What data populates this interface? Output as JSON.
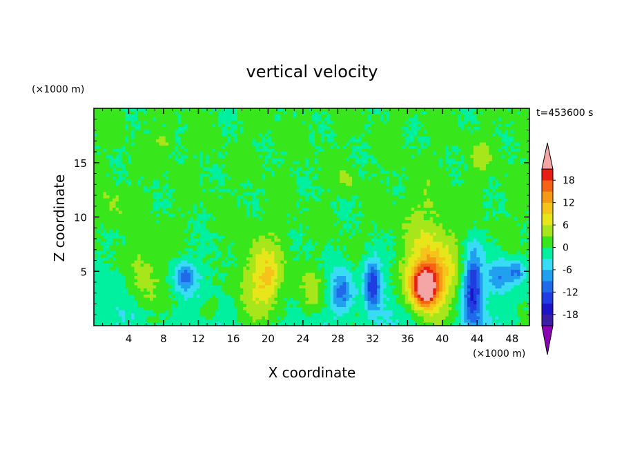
{
  "chart_data": {
    "type": "heatmap",
    "title": "vertical velocity",
    "xlabel": "X coordinate",
    "ylabel": "Z coordinate",
    "x_unit": "(×1000 m)",
    "z_unit": "(×1000 m)",
    "time_label": "t=453600 s",
    "xlim": [
      0,
      50
    ],
    "ylim": [
      0,
      20
    ],
    "x_ticks": [
      4,
      8,
      12,
      16,
      20,
      24,
      28,
      32,
      36,
      40,
      44,
      48
    ],
    "y_ticks": [
      5,
      10,
      15
    ],
    "colorbar": {
      "tick_labels": [
        18,
        12,
        6,
        0,
        -6,
        -12,
        -18
      ],
      "levels": [
        -21,
        -18,
        -15,
        -12,
        -9,
        -6,
        -3,
        0,
        3,
        6,
        9,
        12,
        15,
        18,
        21
      ],
      "colors": [
        "#7a00a0",
        "#3a1fa6",
        "#1d14c8",
        "#1f3de0",
        "#1e6ae8",
        "#21a0f0",
        "#38dcf4",
        "#00f0a0",
        "#38e61c",
        "#a6e61a",
        "#e6e61a",
        "#f5c31a",
        "#f59a16",
        "#f56414",
        "#e61e14",
        "#f4a6a6"
      ],
      "under_color": "#8a00b4",
      "over_color": "#f4a6a6"
    },
    "features": [
      {
        "x": 38,
        "z": 3.5,
        "w": 1.3,
        "h": 1.6,
        "value": 20
      },
      {
        "x": 38.5,
        "z": 4.5,
        "w": 2.4,
        "h": 2.5,
        "value": 9
      },
      {
        "x": 38.5,
        "z": 5.5,
        "w": 3.2,
        "h": 5.5,
        "value": 6
      },
      {
        "x": 19.5,
        "z": 4.0,
        "w": 3.2,
        "h": 4.0,
        "value": 6
      },
      {
        "x": 20,
        "z": 4.5,
        "w": 1.2,
        "h": 2.0,
        "value": 5
      },
      {
        "x": 25,
        "z": 2.8,
        "w": 1.5,
        "h": 2.2,
        "value": 6
      },
      {
        "x": 5.5,
        "z": 4.5,
        "w": 1.8,
        "h": 3.0,
        "value": 5
      },
      {
        "x": 43.5,
        "z": 3.5,
        "w": 1.0,
        "h": 3.5,
        "value": -14
      },
      {
        "x": 32,
        "z": 4.0,
        "w": 0.9,
        "h": 2.2,
        "value": -13
      },
      {
        "x": 28.5,
        "z": 3.0,
        "w": 1.3,
        "h": 2.0,
        "value": -11
      },
      {
        "x": 10.5,
        "z": 4.5,
        "w": 1.2,
        "h": 1.3,
        "value": -9
      },
      {
        "x": 46.5,
        "z": 4.5,
        "w": 1.4,
        "h": 1.5,
        "value": -8
      },
      {
        "x": 48.5,
        "z": 5.0,
        "w": 1.0,
        "h": 1.0,
        "value": -8
      },
      {
        "x": 13.5,
        "z": 1.5,
        "w": 1.2,
        "h": 1.2,
        "value": 5
      },
      {
        "x": 44.5,
        "z": 15.5,
        "w": 1.2,
        "h": 1.3,
        "value": 4
      },
      {
        "x": 8,
        "z": 17,
        "w": 1.0,
        "h": 0.8,
        "value": 4
      },
      {
        "x": 2,
        "z": 11,
        "w": 1.5,
        "h": 1.5,
        "value": 3
      },
      {
        "x": 29,
        "z": 13.5,
        "w": 1.0,
        "h": 1.0,
        "value": 3
      }
    ]
  }
}
